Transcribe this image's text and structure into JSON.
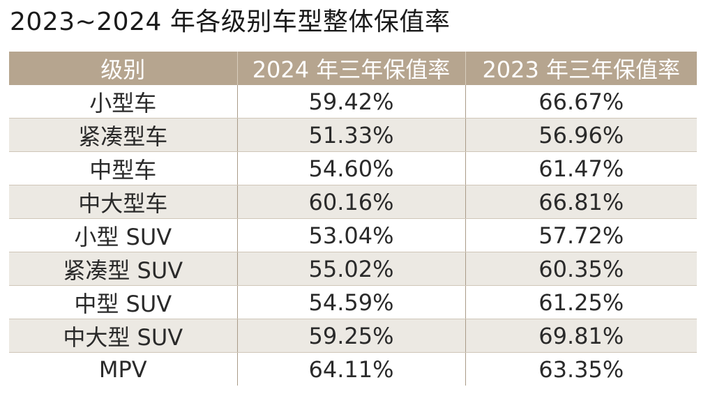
{
  "title": "2023~2024 年各级别车型整体保值率",
  "table": {
    "headers": [
      "级别",
      "2024 年三年保值率",
      "2023 年三年保值率"
    ],
    "rows": [
      {
        "level": "小型车",
        "rate_2024": "59.42%",
        "rate_2023": "66.67%"
      },
      {
        "level": "紧凑型车",
        "rate_2024": "51.33%",
        "rate_2023": "56.96%"
      },
      {
        "level": "中型车",
        "rate_2024": "54.60%",
        "rate_2023": "61.47%"
      },
      {
        "level": "中大型车",
        "rate_2024": "60.16%",
        "rate_2023": "66.81%"
      },
      {
        "level": "小型 SUV",
        "rate_2024": "53.04%",
        "rate_2023": "57.72%"
      },
      {
        "level": "紧凑型 SUV",
        "rate_2024": "55.02%",
        "rate_2023": "60.35%"
      },
      {
        "level": "中型 SUV",
        "rate_2024": "54.59%",
        "rate_2023": "61.25%"
      },
      {
        "level": "中大型 SUV",
        "rate_2024": "59.25%",
        "rate_2023": "69.81%"
      },
      {
        "level": "MPV",
        "rate_2024": "64.11%",
        "rate_2023": "63.35%"
      }
    ]
  },
  "colors": {
    "header_bg": "#b6a58f",
    "header_text": "#ffffff",
    "stripe_bg": "#ece9e3",
    "row_bg": "#ffffff",
    "text": "#2a2a2a"
  }
}
